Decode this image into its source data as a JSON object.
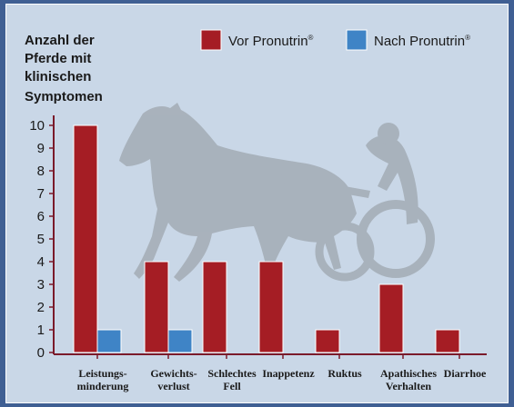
{
  "chart_data": {
    "type": "bar",
    "ylabel": [
      "Anzahl der",
      "Pferde mit",
      "klinischen",
      "Symptomen"
    ],
    "ylim": [
      0,
      10
    ],
    "yticks": [
      0,
      1,
      2,
      3,
      4,
      5,
      6,
      7,
      8,
      9,
      10
    ],
    "categories": [
      [
        "Leistungs-",
        "minderung"
      ],
      [
        "Gewichts-",
        "verlust"
      ],
      [
        "Schlechtes",
        "Fell"
      ],
      [
        "Inappetenz"
      ],
      [
        "Ruktus"
      ],
      [
        "Apathisches",
        "Verhalten"
      ],
      [
        "Diarrhoe"
      ]
    ],
    "series": [
      {
        "name": "Vor Pronutrin",
        "sup": "®",
        "color": "#a51d24",
        "values": [
          10,
          4,
          4,
          4,
          1,
          3,
          1
        ]
      },
      {
        "name": "Nach Pronutrin",
        "sup": "®",
        "color": "#3f84c6",
        "values": [
          1,
          1,
          0,
          0,
          0,
          0,
          0
        ]
      }
    ],
    "legend": "top-right",
    "grid": false,
    "axis_color": "#7a1a2a",
    "background": "#c9d7e7",
    "watermark": "horse-sulky-silhouette"
  }
}
